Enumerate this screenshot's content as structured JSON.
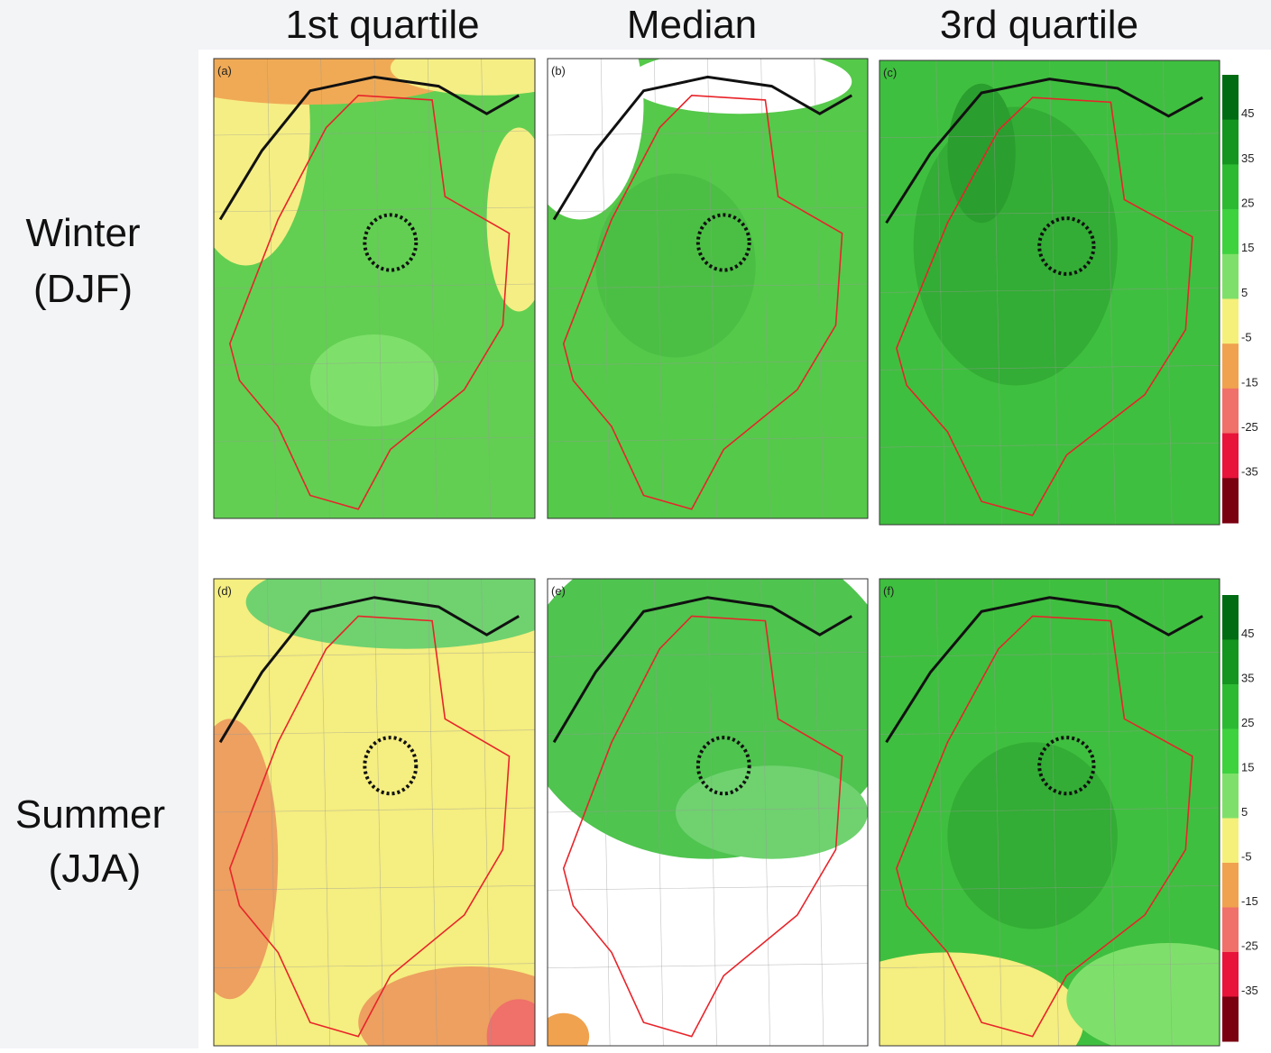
{
  "columns": [
    "1st quartile",
    "Median",
    "3rd quartile"
  ],
  "rows": [
    {
      "lines": [
        "Winter",
        "(DJF)"
      ]
    },
    {
      "lines": [
        "Summer",
        "(JJA)"
      ]
    }
  ],
  "panels": [
    "(a)",
    "(b)",
    "(c)",
    "(d)",
    "(e)",
    "(f)"
  ],
  "colorbar": {
    "ticks": [
      45,
      35,
      25,
      15,
      5,
      -5,
      -15,
      -25,
      -35
    ],
    "colors": [
      "#006b12",
      "#14951f",
      "#2dba33",
      "#3ed23f",
      "#7ee06a",
      "#f5f07a",
      "#f0a24e",
      "#f0706a",
      "#e8143a",
      "#7a0010"
    ]
  }
}
